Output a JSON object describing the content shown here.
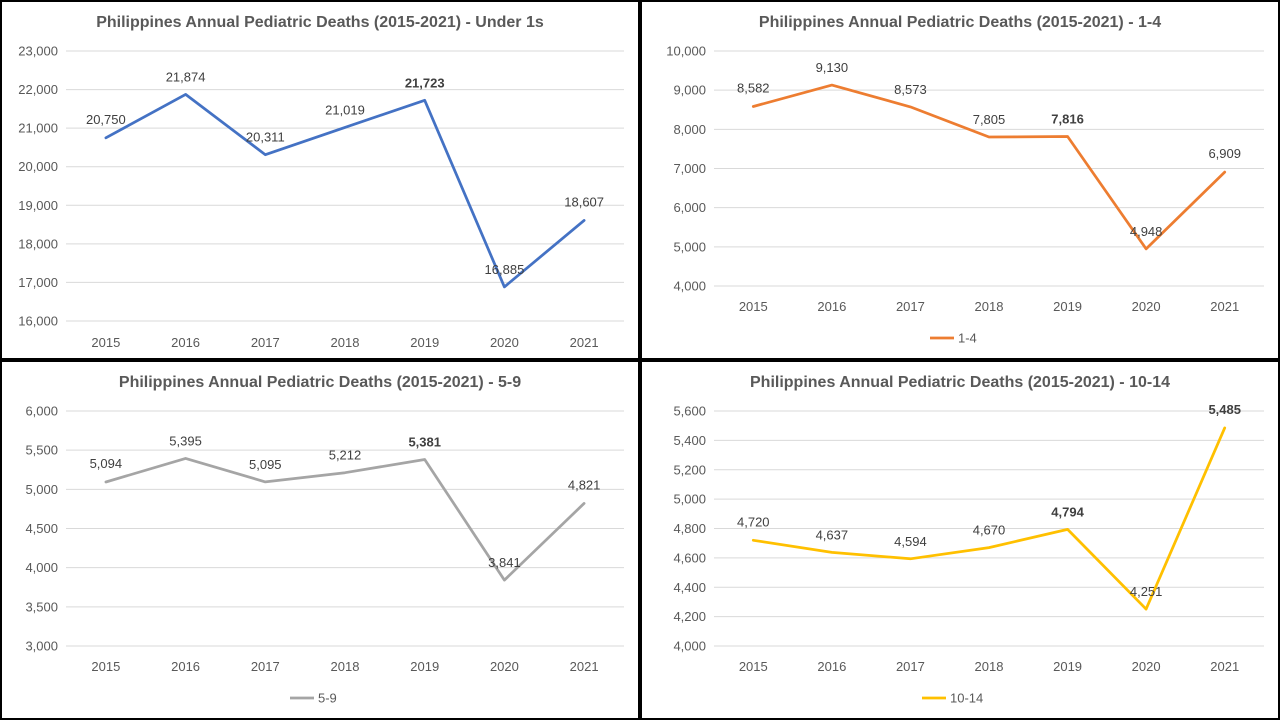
{
  "chart_data": [
    {
      "type": "line",
      "title": "Philippines Annual Pediatric Deaths (2015-2021) - Under 1s",
      "categories": [
        "2015",
        "2016",
        "2017",
        "2018",
        "2019",
        "2020",
        "2021"
      ],
      "series": [
        {
          "name": "",
          "values": [
            20750,
            21874,
            20311,
            21019,
            21723,
            16885,
            18607
          ],
          "color": "#4472C4"
        }
      ],
      "data_labels": [
        "20,750",
        "21,874",
        "20,311",
        "21,019",
        "21,723",
        "16,885",
        "18,607"
      ],
      "y_ticks": [
        "16,000",
        "17,000",
        "18,000",
        "19,000",
        "20,000",
        "21,000",
        "22,000",
        "23,000"
      ],
      "ylim": [
        16000,
        23000
      ],
      "grid": true,
      "legend": "none",
      "bold_label_index": 4,
      "highlight_color": ""
    },
    {
      "type": "line",
      "title": "Philippines Annual Pediatric Deaths (2015-2021) - 1-4",
      "categories": [
        "2015",
        "2016",
        "2017",
        "2018",
        "2019",
        "2020",
        "2021"
      ],
      "series": [
        {
          "name": "1-4",
          "values": [
            8582,
            9130,
            8573,
            7805,
            7816,
            4948,
            6909
          ],
          "color": "#ED7D31"
        }
      ],
      "data_labels": [
        "8,582",
        "9,130",
        "8,573",
        "7,805",
        "7,816",
        "4,948",
        "6,909"
      ],
      "y_ticks": [
        "4,000",
        "5,000",
        "6,000",
        "7,000",
        "8,000",
        "9,000",
        "10,000"
      ],
      "ylim": [
        4000,
        10000
      ],
      "grid": true,
      "legend": "bottom",
      "bold_label_index": 4,
      "highlight_color": ""
    },
    {
      "type": "line",
      "title": "Philippines Annual Pediatric Deaths (2015-2021) - 5-9",
      "categories": [
        "2015",
        "2016",
        "2017",
        "2018",
        "2019",
        "2020",
        "2021"
      ],
      "series": [
        {
          "name": "5-9",
          "values": [
            5094,
            5395,
            5095,
            5212,
            5381,
            3841,
            4821
          ],
          "color": "#A5A5A5"
        }
      ],
      "data_labels": [
        "5,094",
        "5,395",
        "5,095",
        "5,212",
        "5,381",
        "3,841",
        "4,821"
      ],
      "y_ticks": [
        "3,000",
        "3,500",
        "4,000",
        "4,500",
        "5,000",
        "5,500",
        "6,000"
      ],
      "ylim": [
        3000,
        6000
      ],
      "grid": true,
      "legend": "bottom",
      "bold_label_index": 4,
      "highlight_color": ""
    },
    {
      "type": "line",
      "title": "Philippines Annual Pediatric Deaths (2015-2021) - 10-14",
      "categories": [
        "2015",
        "2016",
        "2017",
        "2018",
        "2019",
        "2020",
        "2021"
      ],
      "series": [
        {
          "name": "10-14",
          "values": [
            4720,
            4637,
            4594,
            4670,
            4794,
            4251,
            5485
          ],
          "color": "#FFC000"
        }
      ],
      "data_labels": [
        "4,720",
        "4,637",
        "4,594",
        "4,670",
        "4,794",
        "4,251",
        "5,485"
      ],
      "y_ticks": [
        "4,000",
        "4,200",
        "4,400",
        "4,600",
        "4,800",
        "5,000",
        "5,200",
        "5,400",
        "5,600"
      ],
      "ylim": [
        4000,
        5600
      ],
      "grid": true,
      "legend": "bottom",
      "bold_label_index": 4,
      "highlight_index": 6,
      "highlight_color": "#C00000"
    }
  ]
}
